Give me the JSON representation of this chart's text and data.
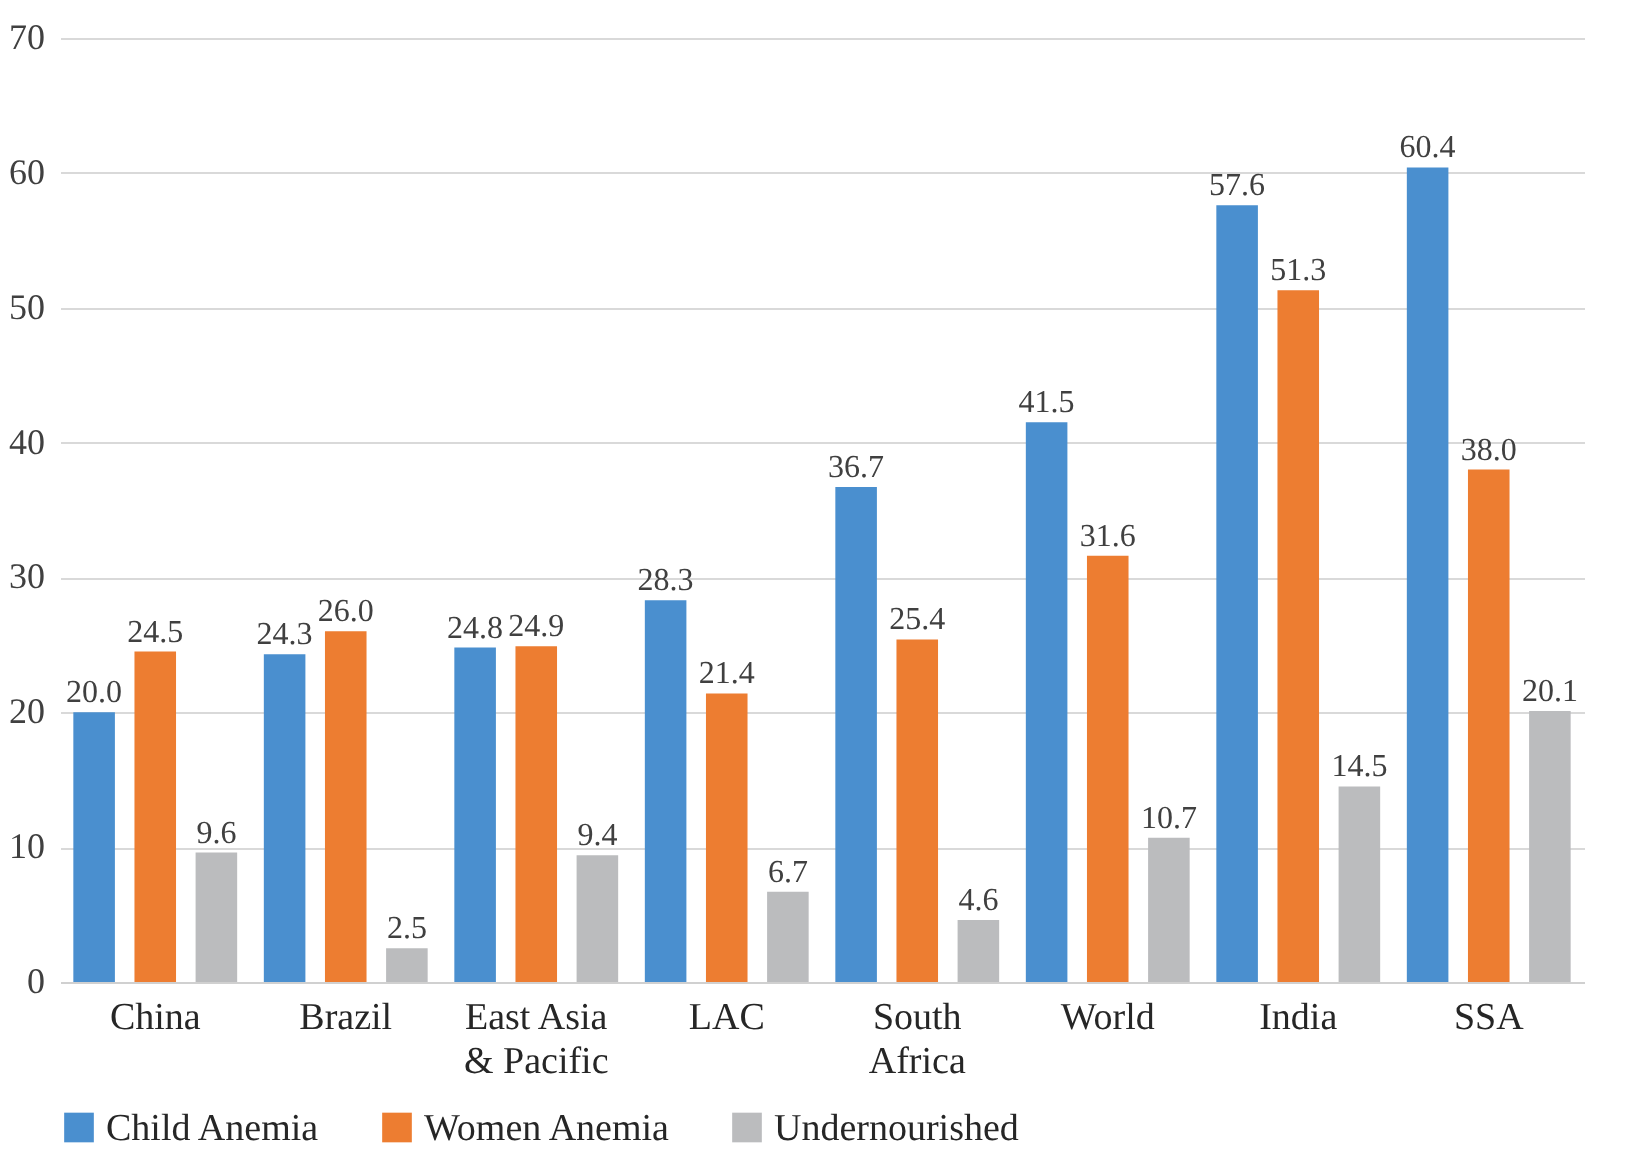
{
  "chart_data": {
    "type": "bar",
    "categories": [
      "China",
      "Brazil",
      "East Asia & Pacific",
      "LAC",
      "South Africa",
      "World",
      "India",
      "SSA"
    ],
    "series": [
      {
        "name": "Child Anemia",
        "color": "#4a8fcf",
        "values": [
          20.0,
          24.3,
          24.8,
          28.3,
          36.7,
          41.5,
          57.6,
          60.4
        ],
        "value_labels": [
          "20.0",
          "24.3",
          "24.8",
          "28.3",
          "36.7",
          "41.5",
          "57.6",
          "60.4"
        ]
      },
      {
        "name": "Women Anemia",
        "color": "#ed7d31",
        "values": [
          24.5,
          26.0,
          24.9,
          21.4,
          25.4,
          31.6,
          51.3,
          38.0
        ],
        "value_labels": [
          "24.5",
          "26.0",
          "24.9",
          "21.4",
          "25.4",
          "31.6",
          "51.3",
          "38.0"
        ]
      },
      {
        "name": "Undernourished",
        "color": "#bbbcbe",
        "values": [
          9.6,
          2.5,
          9.4,
          6.7,
          4.6,
          10.7,
          14.5,
          20.1
        ],
        "value_labels": [
          "9.6",
          "2.5",
          "9.4",
          "6.7",
          "4.6",
          "10.7",
          "14.5",
          "20.1"
        ]
      }
    ],
    "ylim": [
      0,
      70
    ],
    "yticks": [
      0,
      10,
      20,
      30,
      40,
      50,
      60,
      70
    ],
    "grid": "y",
    "legend": "bottom"
  }
}
